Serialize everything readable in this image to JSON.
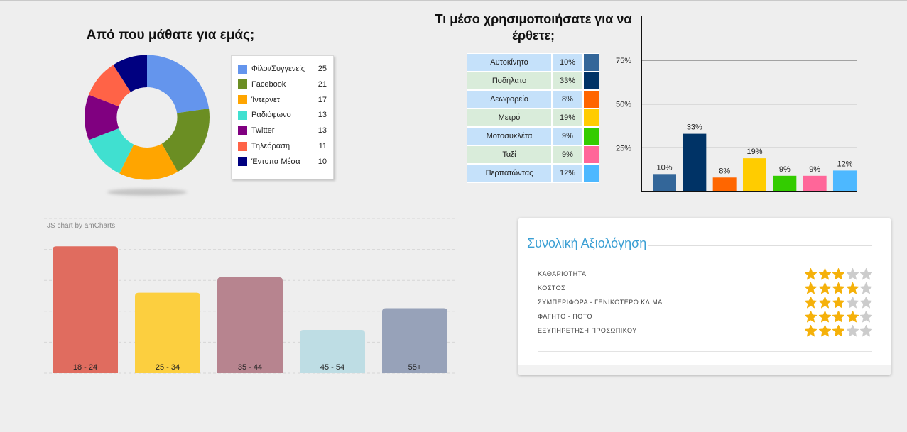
{
  "chart_data": [
    {
      "type": "pie",
      "title": "Από που μάθατε για εμάς;",
      "labels": [
        "Φίλοι/Συγγενείς",
        "Facebook",
        "Ίντερνετ",
        "Ραδιόφωνο",
        "Twitter",
        "Τηλεόραση",
        "Έντυπα Μέσα"
      ],
      "values": [
        25,
        21,
        17,
        13,
        13,
        11,
        10
      ],
      "colors": [
        "#6495ED",
        "#6B8E23",
        "#FFA500",
        "#40E0D0",
        "#800080",
        "#FF6347",
        "#000080"
      ],
      "donut": true,
      "legend": "right"
    },
    {
      "type": "bar",
      "title": "Τι μέσο χρησιμοποιήσατε για να έρθετε;",
      "categories": [
        "Αυτοκίνητο",
        "Ποδήλατο",
        "Λεωφορείο",
        "Μετρό",
        "Μοτοσυκλέτα",
        "Ταξί",
        "Περπατώντας"
      ],
      "values": [
        10,
        33,
        8,
        19,
        9,
        9,
        12
      ],
      "value_labels": [
        "10%",
        "33%",
        "8%",
        "19%",
        "9%",
        "9%",
        "12%"
      ],
      "colors": [
        "#336699",
        "#003366",
        "#FF6600",
        "#FFCC00",
        "#33CC00",
        "#FF6699",
        "#4DB8FF"
      ],
      "ylim": [
        0,
        100
      ],
      "yticks": [
        75,
        50,
        25
      ],
      "ytick_labels": [
        "75%",
        "50%",
        "25%"
      ],
      "grid": true,
      "legend": "left"
    },
    {
      "type": "bar",
      "categories": [
        "18 - 24",
        "25 - 34",
        "35 - 44",
        "45 - 54",
        "55+"
      ],
      "values": [
        41,
        26,
        31,
        14,
        21
      ],
      "colors": [
        "#E06C5F",
        "#FCCF3F",
        "#B7848F",
        "#BEDDE4",
        "#97A2B9"
      ],
      "ylim": [
        0,
        50
      ],
      "grid": true,
      "credit": "JS chart by amCharts"
    }
  ],
  "transport_table": {
    "row_colors": [
      "#C5E1FA",
      "#D9ECDA"
    ]
  },
  "rating": {
    "title": "Συνολική Αξιολόγηση",
    "max_stars": 5,
    "items": [
      {
        "label": "ΚΑΘΑΡΙΟΤΗΤΑ",
        "stars": 3
      },
      {
        "label": "ΚΟΣΤΟΣ",
        "stars": 4
      },
      {
        "label": "ΣΥΜΠΕΡΙΦΟΡΑ - ΓΕΝΙΚΟΤΕΡΟ ΚΛΙΜΑ",
        "stars": 3
      },
      {
        "label": "ΦΑΓΗΤΟ - ΠΟΤΟ",
        "stars": 4
      },
      {
        "label": "ΕΞΥΠΗΡΕΤΗΣΗ ΠΡΟΣΩΠΙΚΟΥ",
        "stars": 3
      }
    ],
    "colors": {
      "title": "#3A9FD4",
      "star_filled": "#F5B10A",
      "star_empty": "#CCCCCC"
    }
  }
}
